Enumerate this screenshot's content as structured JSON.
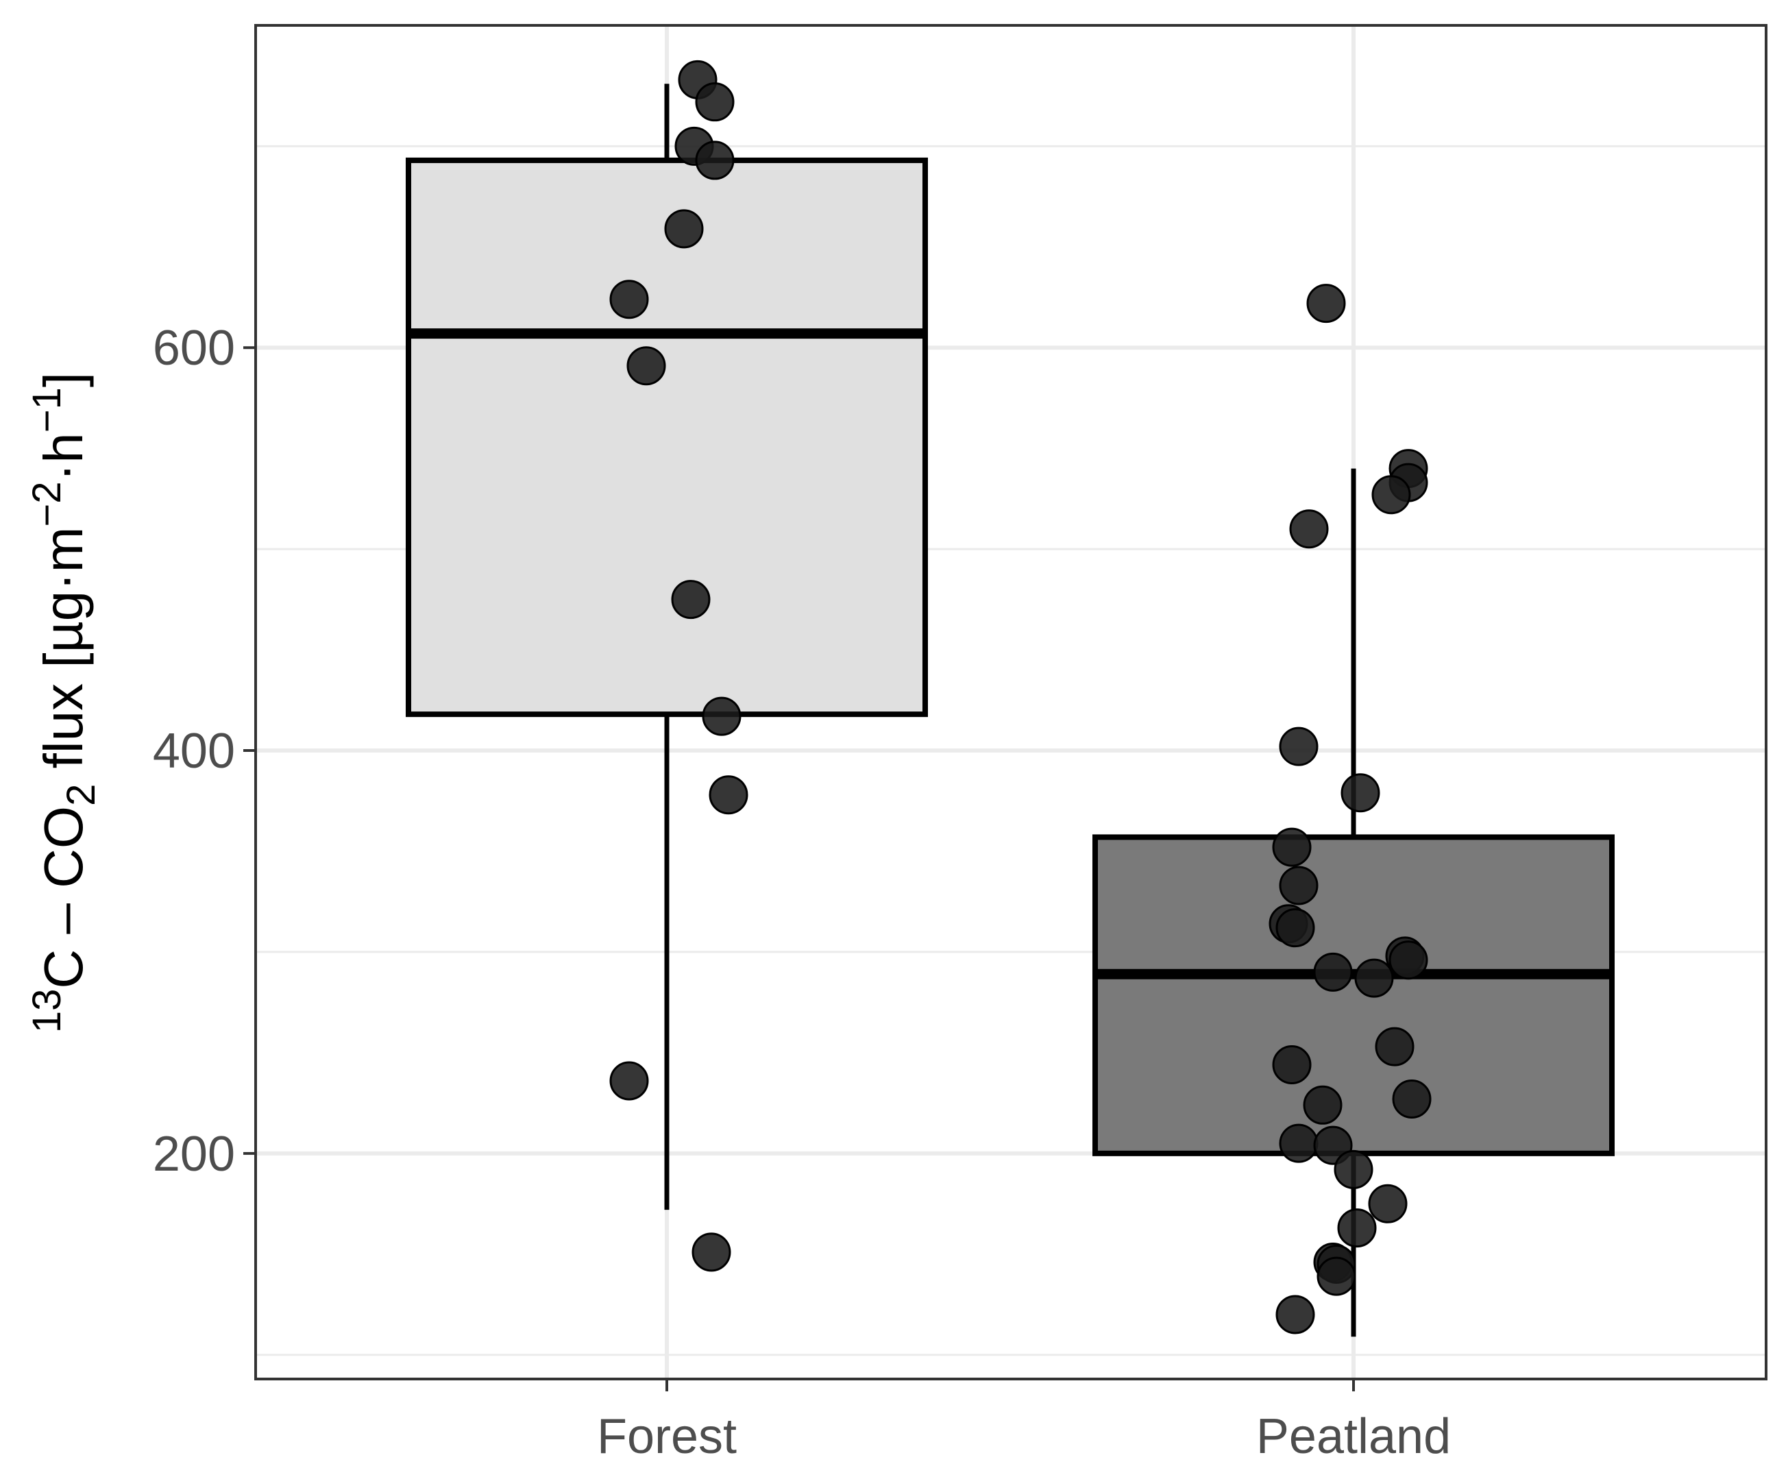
{
  "chart_data": {
    "type": "boxplot",
    "title": "",
    "xlabel": "",
    "ylabel": {
      "parts": [
        {
          "text": "13",
          "style": "sup"
        },
        {
          "text": "C – CO",
          "style": "normal"
        },
        {
          "text": "2",
          "style": "sub"
        },
        {
          "text": " flux [µg·m",
          "style": "normal"
        },
        {
          "text": "−2",
          "style": "sup"
        },
        {
          "text": "·h",
          "style": "normal"
        },
        {
          "text": "−1",
          "style": "sup"
        },
        {
          "text": "]",
          "style": "normal"
        }
      ]
    },
    "ylim": [
      88,
      760
    ],
    "yticks": [
      200,
      400,
      600
    ],
    "ytick_labels": [
      "200",
      "400",
      "600"
    ],
    "y_minor_gridlines": [
      100,
      300,
      500,
      700
    ],
    "grid": true,
    "legend": "none",
    "categories": [
      "Forest",
      "Peatland"
    ],
    "boxes": [
      {
        "name": "Forest",
        "fill": "#e0e0e0",
        "whisker_low": 172,
        "q1": 418,
        "median": 607,
        "q3": 693,
        "whisker_high": 731,
        "points": [
          {
            "jitter": 0.09,
            "y": 733
          },
          {
            "jitter": 0.14,
            "y": 722
          },
          {
            "jitter": 0.08,
            "y": 700
          },
          {
            "jitter": 0.14,
            "y": 693
          },
          {
            "jitter": 0.05,
            "y": 659
          },
          {
            "jitter": -0.11,
            "y": 624
          },
          {
            "jitter": -0.06,
            "y": 591
          },
          {
            "jitter": 0.07,
            "y": 475
          },
          {
            "jitter": 0.16,
            "y": 417
          },
          {
            "jitter": 0.18,
            "y": 378
          },
          {
            "jitter": -0.11,
            "y": 236
          },
          {
            "jitter": 0.13,
            "y": 151
          }
        ]
      },
      {
        "name": "Peatland",
        "fill": "#7a7a7a",
        "whisker_low": 109,
        "q1": 200,
        "median": 289,
        "q3": 357,
        "whisker_high": 540,
        "points": [
          {
            "jitter": -0.08,
            "y": 622
          },
          {
            "jitter": 0.16,
            "y": 540
          },
          {
            "jitter": 0.16,
            "y": 533
          },
          {
            "jitter": 0.11,
            "y": 527
          },
          {
            "jitter": -0.13,
            "y": 510
          },
          {
            "jitter": -0.16,
            "y": 402
          },
          {
            "jitter": 0.02,
            "y": 379
          },
          {
            "jitter": -0.18,
            "y": 352
          },
          {
            "jitter": -0.16,
            "y": 333
          },
          {
            "jitter": -0.19,
            "y": 314
          },
          {
            "jitter": -0.17,
            "y": 312
          },
          {
            "jitter": 0.15,
            "y": 298
          },
          {
            "jitter": 0.16,
            "y": 296
          },
          {
            "jitter": -0.06,
            "y": 290
          },
          {
            "jitter": 0.06,
            "y": 287
          },
          {
            "jitter": 0.12,
            "y": 253
          },
          {
            "jitter": -0.18,
            "y": 244
          },
          {
            "jitter": 0.17,
            "y": 227
          },
          {
            "jitter": -0.09,
            "y": 224
          },
          {
            "jitter": -0.16,
            "y": 205
          },
          {
            "jitter": -0.06,
            "y": 204
          },
          {
            "jitter": 0.0,
            "y": 192
          },
          {
            "jitter": 0.1,
            "y": 175
          },
          {
            "jitter": 0.01,
            "y": 163
          },
          {
            "jitter": -0.06,
            "y": 146
          },
          {
            "jitter": -0.05,
            "y": 145
          },
          {
            "jitter": -0.05,
            "y": 139
          },
          {
            "jitter": -0.17,
            "y": 120
          }
        ]
      }
    ],
    "colors": {
      "panel_border": "#333333",
      "grid": "#ebebeb",
      "box_stroke": "#000000",
      "point": "#1a1a1a",
      "tick_text": "#4d4d4d"
    }
  }
}
